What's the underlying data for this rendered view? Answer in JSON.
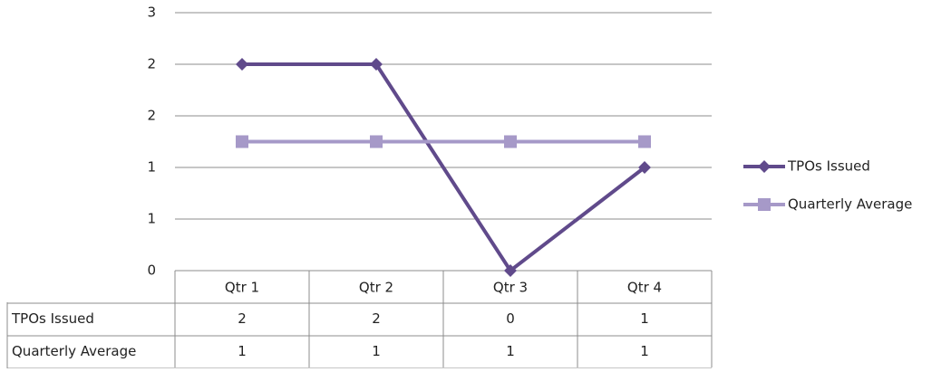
{
  "chart_data": {
    "type": "line",
    "categories": [
      "Qtr 1",
      "Qtr 2",
      "Qtr 3",
      "Qtr 4"
    ],
    "series": [
      {
        "name": "TPOs Issued",
        "color": "#604a8b",
        "marker": "diamond",
        "values": [
          2.4,
          2.4,
          0,
          1.2
        ],
        "value_labels": [
          "2",
          "2",
          "0",
          "1"
        ]
      },
      {
        "name": "Quarterly Average",
        "color": "#a699c8",
        "marker": "square",
        "values": [
          1.5,
          1.5,
          1.5,
          1.5
        ],
        "value_labels": [
          "1",
          "1",
          "1",
          "1"
        ]
      }
    ],
    "ylim": [
      0,
      3
    ],
    "yticks": [
      0,
      {
        "value": 0.6,
        "label": "1"
      },
      {
        "value": 1.2,
        "label": "1"
      },
      {
        "value": 1.8,
        "label": "2"
      },
      {
        "value": 2.4,
        "label": "2"
      },
      3
    ],
    "grid": true,
    "legend": "right",
    "data_table": true
  }
}
